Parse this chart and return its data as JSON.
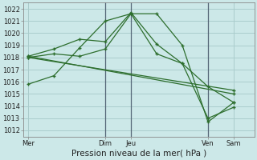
{
  "background_color": "#cce8e8",
  "grid_color": "#aacccc",
  "line_color": "#2d6e2d",
  "ylabel_ticks": [
    1012,
    1013,
    1014,
    1015,
    1016,
    1017,
    1018,
    1019,
    1020,
    1021,
    1022
  ],
  "x_tick_positions": [
    0,
    30,
    40,
    70,
    80
  ],
  "x_tick_labels": [
    "Mer",
    "Dim",
    "Jeu",
    "Ven",
    "Sam"
  ],
  "xlabel": "Pression niveau de la mer( hPa )",
  "ylim": [
    1011.5,
    1022.5
  ],
  "xlim": [
    -2,
    88
  ],
  "lines": [
    {
      "x": [
        0,
        10,
        20,
        30,
        40,
        50,
        60,
        70,
        80
      ],
      "y": [
        1015.8,
        1016.5,
        1018.8,
        1021.0,
        1021.6,
        1021.6,
        1019.0,
        1012.7,
        1014.3
      ]
    },
    {
      "x": [
        0,
        10,
        20,
        30,
        40,
        50,
        60,
        70,
        80
      ],
      "y": [
        1018.1,
        1018.7,
        1019.5,
        1019.3,
        1021.7,
        1019.1,
        1017.5,
        1015.6,
        1014.3
      ]
    },
    {
      "x": [
        0,
        10,
        20,
        30,
        40,
        50,
        60,
        70,
        80
      ],
      "y": [
        1018.0,
        1018.3,
        1018.1,
        1018.7,
        1021.6,
        1018.3,
        1017.5,
        1013.0,
        1013.9
      ]
    },
    {
      "x": [
        0,
        80
      ],
      "y": [
        1018.0,
        1015.3
      ]
    },
    {
      "x": [
        0,
        80
      ],
      "y": [
        1018.1,
        1015.0
      ]
    }
  ],
  "vline_positions": [
    30,
    40,
    70
  ],
  "vline_color": "#556677",
  "tick_fontsize": 6,
  "xlabel_fontsize": 7.5
}
